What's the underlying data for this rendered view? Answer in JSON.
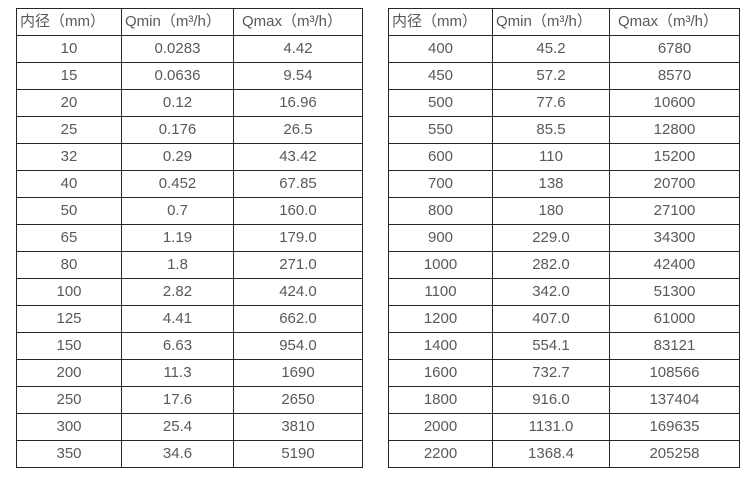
{
  "page": {
    "background": "#ffffff",
    "text_color": "#595959",
    "border_color": "#262626"
  },
  "tables": [
    {
      "name": "flow-range-table-small-diameters",
      "headers": [
        "内径（mm）",
        "Qmin（m³/h）",
        "Qmax（m³/h）"
      ],
      "rows": [
        [
          "10",
          "0.0283",
          "4.42"
        ],
        [
          "15",
          "0.0636",
          "9.54"
        ],
        [
          "20",
          "0.12",
          "16.96"
        ],
        [
          "25",
          "0.176",
          "26.5"
        ],
        [
          "32",
          "0.29",
          "43.42"
        ],
        [
          "40",
          "0.452",
          "67.85"
        ],
        [
          "50",
          "0.7",
          "160.0"
        ],
        [
          "65",
          "1.19",
          "179.0"
        ],
        [
          "80",
          "1.8",
          "271.0"
        ],
        [
          "100",
          "2.82",
          "424.0"
        ],
        [
          "125",
          "4.41",
          "662.0"
        ],
        [
          "150",
          "6.63",
          "954.0"
        ],
        [
          "200",
          "11.3",
          "1690"
        ],
        [
          "250",
          "17.6",
          "2650"
        ],
        [
          "300",
          "25.4",
          "3810"
        ],
        [
          "350",
          "34.6",
          "5190"
        ]
      ]
    },
    {
      "name": "flow-range-table-large-diameters",
      "headers": [
        "内径（mm）",
        "Qmin（m³/h）",
        "Qmax（m³/h）"
      ],
      "rows": [
        [
          "400",
          "45.2",
          "6780"
        ],
        [
          "450",
          "57.2",
          "8570"
        ],
        [
          "500",
          "77.6",
          "10600"
        ],
        [
          "550",
          "85.5",
          "12800"
        ],
        [
          "600",
          "110",
          "15200"
        ],
        [
          "700",
          "138",
          "20700"
        ],
        [
          "800",
          "180",
          "27100"
        ],
        [
          "900",
          "229.0",
          "34300"
        ],
        [
          "1000",
          "282.0",
          "42400"
        ],
        [
          "1100",
          "342.0",
          "51300"
        ],
        [
          "1200",
          "407.0",
          "61000"
        ],
        [
          "1400",
          "554.1",
          "83121"
        ],
        [
          "1600",
          "732.7",
          "108566"
        ],
        [
          "1800",
          "916.0",
          "137404"
        ],
        [
          "2000",
          "1131.0",
          "169635"
        ],
        [
          "2200",
          "1368.4",
          "205258"
        ]
      ]
    }
  ]
}
